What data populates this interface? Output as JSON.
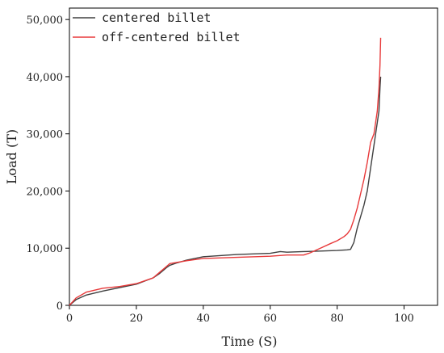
{
  "chart_data": {
    "type": "line",
    "xlabel": "Time (S)",
    "ylabel": "Load (T)",
    "xlim": [
      0,
      110
    ],
    "ylim": [
      0,
      52000
    ],
    "xticks": [
      0,
      20,
      40,
      60,
      80,
      100
    ],
    "yticks": [
      0,
      10000,
      20000,
      30000,
      40000,
      50000
    ],
    "xtick_labels": [
      "0",
      "20",
      "40",
      "60",
      "80",
      "100"
    ],
    "ytick_labels": [
      "0",
      "10,000",
      "20,000",
      "30,000",
      "40,000",
      "50,000"
    ],
    "grid": false,
    "legend_position": "top-left",
    "series": [
      {
        "name": "centered billet",
        "color": "#404040",
        "x": [
          0,
          2,
          5,
          10,
          15,
          20,
          25,
          27,
          29,
          30,
          32,
          35,
          40,
          45,
          50,
          55,
          60,
          63,
          65,
          70,
          75,
          80,
          83,
          84,
          85,
          86,
          87,
          88,
          89,
          90,
          91,
          92,
          92.5,
          92.8,
          93
        ],
        "y": [
          0,
          1000,
          1800,
          2500,
          3100,
          3700,
          4800,
          5600,
          6600,
          7000,
          7400,
          7900,
          8500,
          8700,
          8900,
          9000,
          9100,
          9400,
          9300,
          9400,
          9500,
          9600,
          9700,
          9800,
          11000,
          13500,
          15500,
          17500,
          20000,
          24000,
          28000,
          32000,
          34000,
          38000,
          40000
        ]
      },
      {
        "name": "off-centered billet",
        "color": "#e8393a",
        "x": [
          0,
          2,
          5,
          10,
          15,
          20,
          25,
          27,
          29,
          30,
          35,
          40,
          50,
          60,
          65,
          70,
          72,
          75,
          78,
          80,
          82,
          83,
          84,
          85,
          86,
          87,
          88,
          89,
          90,
          91,
          92,
          92.5,
          92.8,
          93
        ],
        "y": [
          0,
          1300,
          2300,
          3000,
          3300,
          3800,
          4800,
          5800,
          6800,
          7300,
          7800,
          8200,
          8400,
          8600,
          8800,
          8800,
          9200,
          10000,
          10800,
          11300,
          12000,
          12500,
          13300,
          15000,
          17000,
          19500,
          22000,
          25000,
          28500,
          30000,
          34000,
          38000,
          42000,
          46800
        ]
      }
    ]
  }
}
